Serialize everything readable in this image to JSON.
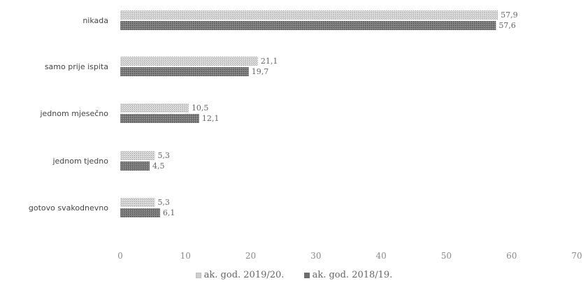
{
  "chart_data": {
    "type": "bar",
    "orientation": "horizontal",
    "categories": [
      "nikada",
      "samo prije ispita",
      "jednom mjesečno",
      "jednom tjedno",
      "gotovo svakodnevno"
    ],
    "series": [
      {
        "name": "ak. god. 2019/20.",
        "values": [
          57.9,
          21.1,
          10.5,
          5.3,
          5.3
        ],
        "labels": [
          "57,9",
          "21,1",
          "10,5",
          "5,3",
          "5,3"
        ],
        "color": "#c8c8c8"
      },
      {
        "name": "ak. god. 2018/19.",
        "values": [
          57.6,
          19.7,
          12.1,
          4.5,
          6.1
        ],
        "labels": [
          "57,6",
          "19,7",
          "12,1",
          "4,5",
          "6,1"
        ],
        "color": "#6e6e6e"
      }
    ],
    "xlim": [
      0,
      70
    ],
    "xticks": [
      0,
      10,
      20,
      30,
      40,
      50,
      60,
      70
    ],
    "grid": false,
    "legend_position": "bottom"
  }
}
